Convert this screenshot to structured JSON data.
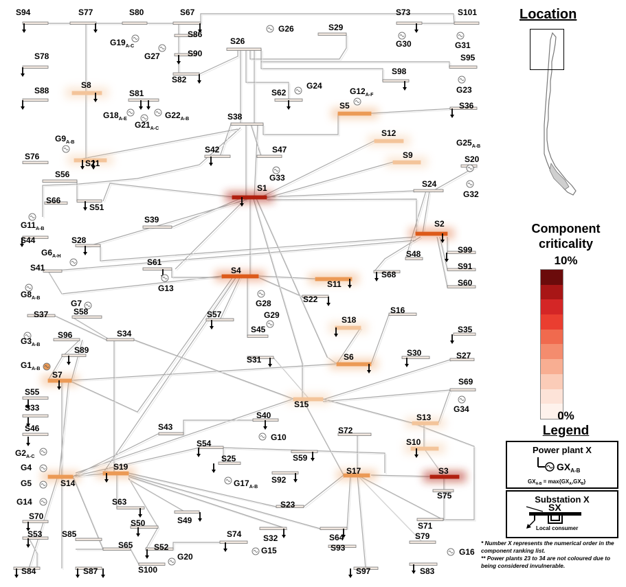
{
  "power_plants": [
    {
      "name": "G1",
      "sub": "A-B",
      "criticality": "medium"
    },
    {
      "name": "G2",
      "sub": "A-C"
    },
    {
      "name": "G3",
      "sub": "A-B"
    },
    {
      "name": "G4",
      "sub": ""
    },
    {
      "name": "G5",
      "sub": ""
    },
    {
      "name": "G6",
      "sub": "A-H"
    },
    {
      "name": "G7",
      "sub": ""
    },
    {
      "name": "G8",
      "sub": "A-B"
    },
    {
      "name": "G9",
      "sub": "A-B"
    },
    {
      "name": "G10",
      "sub": ""
    },
    {
      "name": "G11",
      "sub": "A-B"
    },
    {
      "name": "G12",
      "sub": "A-F"
    },
    {
      "name": "G13",
      "sub": ""
    },
    {
      "name": "G14",
      "sub": ""
    },
    {
      "name": "G15",
      "sub": ""
    },
    {
      "name": "G16",
      "sub": ""
    },
    {
      "name": "G17",
      "sub": "A-B"
    },
    {
      "name": "G18",
      "sub": "A-E"
    },
    {
      "name": "G19",
      "sub": "A-C"
    },
    {
      "name": "G20",
      "sub": ""
    },
    {
      "name": "G21",
      "sub": "A-C"
    },
    {
      "name": "G22",
      "sub": "A-B"
    },
    {
      "name": "G23",
      "sub": ""
    },
    {
      "name": "G24",
      "sub": ""
    },
    {
      "name": "G25",
      "sub": "A-B"
    },
    {
      "name": "G26",
      "sub": ""
    },
    {
      "name": "G27",
      "sub": ""
    },
    {
      "name": "G28",
      "sub": ""
    },
    {
      "name": "G29",
      "sub": ""
    },
    {
      "name": "G30",
      "sub": ""
    },
    {
      "name": "G31",
      "sub": ""
    },
    {
      "name": "G32",
      "sub": ""
    },
    {
      "name": "G33",
      "sub": ""
    },
    {
      "name": "G34",
      "sub": ""
    }
  ],
  "substations": [
    "S1",
    "S2",
    "S3",
    "S4",
    "S5",
    "S6",
    "S7",
    "S8",
    "S9",
    "S10",
    "S11",
    "S12",
    "S13",
    "S14",
    "S15",
    "S16",
    "S17",
    "S18",
    "S19",
    "S20",
    "S21",
    "S22",
    "S23",
    "S24",
    "S25",
    "S26",
    "S27",
    "S28",
    "S29",
    "S30",
    "S31",
    "S32",
    "S33",
    "S34",
    "S35",
    "S36",
    "S37",
    "S38",
    "S39",
    "S40",
    "S41",
    "S42",
    "S43",
    "S44",
    "S45",
    "S46",
    "S47",
    "S48",
    "S49",
    "S50",
    "S51",
    "S52",
    "S53",
    "S54",
    "S55",
    "S56",
    "S57",
    "S58",
    "S59",
    "S60",
    "S61",
    "S62",
    "S63",
    "S64",
    "S65",
    "S66",
    "S67",
    "S68",
    "S69",
    "S70",
    "S71",
    "S72",
    "S73",
    "S74",
    "S75",
    "S76",
    "S77",
    "S78",
    "S79",
    "S80",
    "S81",
    "S82",
    "S83",
    "S84",
    "S85",
    "S86",
    "S87",
    "S88",
    "S89",
    "S90",
    "S91",
    "S92",
    "S93",
    "S94",
    "S95",
    "S96",
    "S97",
    "S98",
    "S99",
    "S100",
    "S101"
  ],
  "criticality_colors": {
    "very_high": "#b0200f",
    "high": "#dd5a1a",
    "medium": "#eb9a56",
    "low": "#f3c49a",
    "very_low": "#f8e2cc",
    "none": "#f2f2f2"
  },
  "location": {
    "title": "Location"
  },
  "criticality": {
    "title": "Component criticality",
    "max_label": "10%",
    "min_label": "0%",
    "scale_colors": [
      "#6b0b0b",
      "#a81616",
      "#d42626",
      "#ea3e30",
      "#f06a4e",
      "#f48c6e",
      "#f8ae92",
      "#fbccb8",
      "#fde3d8",
      "#fef2ec"
    ]
  },
  "legend": {
    "title": "Legend",
    "plant_box_title": "Power plant X",
    "plant_symbol_label": "GX",
    "plant_symbol_sub": "A-B",
    "plant_formula": "GX",
    "plant_formula_sub": "A-B",
    "plant_formula_rest": " = max{GX",
    "plant_formula_a": "A",
    "plant_formula_mid": ",GX",
    "plant_formula_b": "B",
    "plant_formula_end": "}",
    "sub_box_title": "Substation X",
    "sub_symbol_label": "SX",
    "consumer_label": "Local consumer"
  },
  "notes": {
    "note1": "* Number X represents the numerical order in the component ranking list.",
    "note2": "** Power plants 23 to 34 are not coloured due to being considered invulnerable."
  }
}
